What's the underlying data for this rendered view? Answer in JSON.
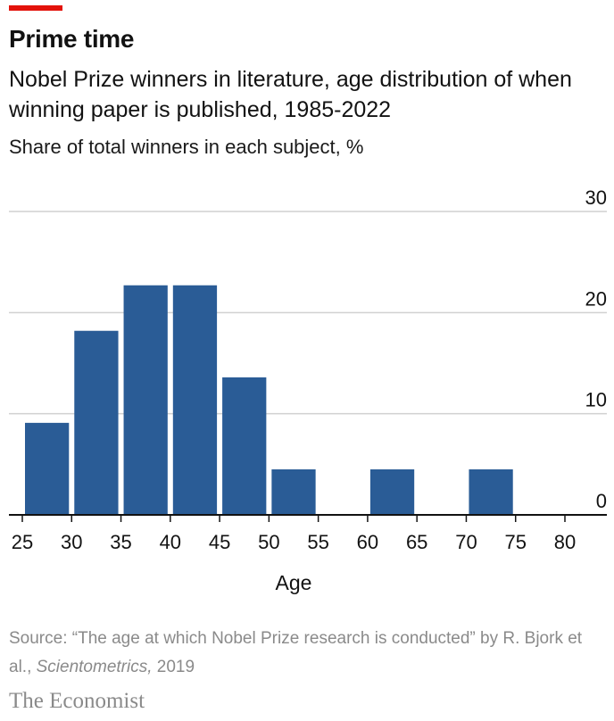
{
  "header": {
    "title": "Prime time",
    "subtitle": "Nobel Prize winners in literature, age distribution of when winning paper is published, 1985-2022",
    "unit_label": "Share of total winners in each subject, %"
  },
  "footer": {
    "source_prefix": "Source: “The age at which Nobel Prize research is conducted” by R. Bjork et al., ",
    "source_journal": "Scientometrics,",
    "source_year": " 2019",
    "brand": "The Economist"
  },
  "colors": {
    "bar": "#2a5c96",
    "grid": "#d0d0d0",
    "axis": "#121212",
    "accent": "#e3120b"
  },
  "chart_data": {
    "type": "bar",
    "title": "Prime time",
    "xlabel": "Age",
    "ylabel": "",
    "x_ticks": [
      25,
      30,
      35,
      40,
      45,
      50,
      55,
      60,
      65,
      70,
      75,
      80
    ],
    "y_ticks": [
      0,
      10,
      20,
      30
    ],
    "xlim": [
      25,
      80
    ],
    "ylim": [
      0,
      30
    ],
    "bin_width": 5,
    "bins": [
      {
        "from": 25,
        "to": 30,
        "value": 9.1
      },
      {
        "from": 30,
        "to": 35,
        "value": 18.2
      },
      {
        "from": 35,
        "to": 40,
        "value": 22.7
      },
      {
        "from": 40,
        "to": 45,
        "value": 22.7
      },
      {
        "from": 45,
        "to": 50,
        "value": 13.6
      },
      {
        "from": 50,
        "to": 55,
        "value": 4.5
      },
      {
        "from": 55,
        "to": 60,
        "value": 0
      },
      {
        "from": 60,
        "to": 65,
        "value": 4.5
      },
      {
        "from": 65,
        "to": 70,
        "value": 0
      },
      {
        "from": 70,
        "to": 75,
        "value": 4.5
      },
      {
        "from": 75,
        "to": 80,
        "value": 0
      }
    ],
    "grid": true,
    "y_axis_position": "right"
  }
}
